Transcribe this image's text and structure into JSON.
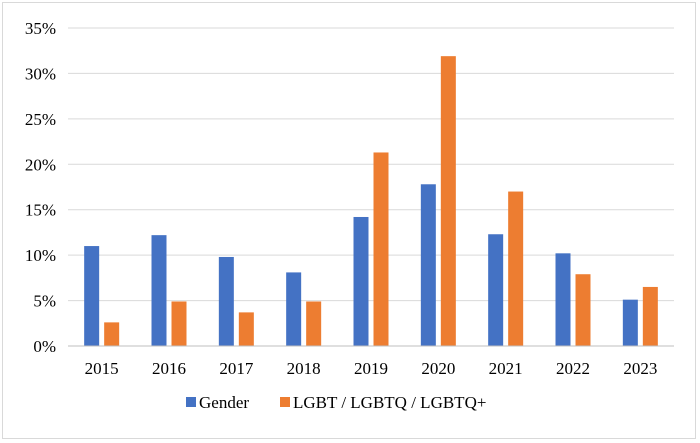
{
  "chart_data": {
    "type": "bar",
    "title": "",
    "xlabel": "",
    "ylabel": "",
    "categories": [
      "2015",
      "2016",
      "2017",
      "2018",
      "2019",
      "2020",
      "2021",
      "2022",
      "2023"
    ],
    "series": [
      {
        "name": "Gender",
        "color": "#4472c4",
        "values": [
          11.0,
          12.2,
          9.8,
          8.1,
          14.2,
          17.8,
          12.3,
          10.2,
          5.1
        ]
      },
      {
        "name": "LGBT / LGBTQ / LGBTQ+",
        "color": "#ed7d31",
        "values": [
          2.6,
          4.9,
          3.7,
          4.9,
          21.3,
          31.9,
          17.0,
          7.9,
          6.5
        ]
      }
    ],
    "ylim": [
      0,
      35
    ],
    "yticks": [
      0,
      5,
      10,
      15,
      20,
      25,
      30,
      35
    ],
    "ytick_labels": [
      "0%",
      "5%",
      "10%",
      "15%",
      "20%",
      "25%",
      "30%",
      "35%"
    ],
    "grid": true,
    "legend_position": "bottom"
  }
}
